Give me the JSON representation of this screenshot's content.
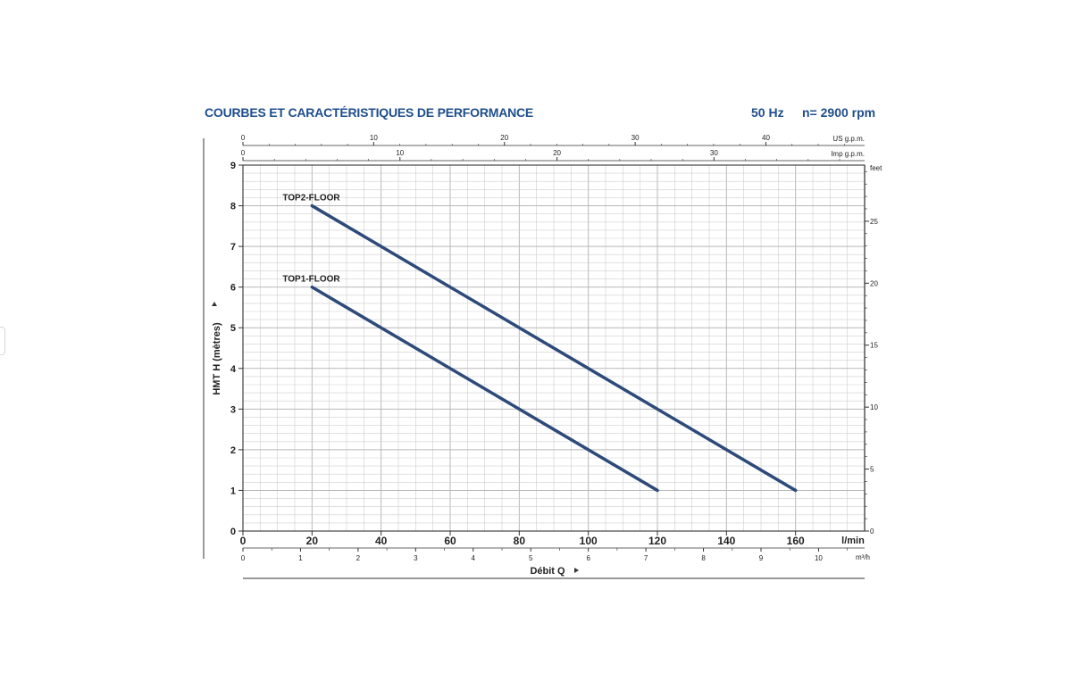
{
  "header": {
    "title": "COURBES ET CARACTÉRISTIQUES DE PERFORMANCE",
    "frequency": "50 Hz",
    "speed": "n= 2900 rpm"
  },
  "colors": {
    "curve": "#2d4a7a",
    "title": "#1f4e8c",
    "grid": "#cfcfcf",
    "text": "#222222"
  },
  "chart_data": {
    "type": "line",
    "xlabel": "Débit Q",
    "ylabel": "HMT H (mètres)",
    "xlim": [
      0,
      180
    ],
    "ylim": [
      0,
      9
    ],
    "x_unit": "l/min",
    "x_ticks": [
      0,
      20,
      40,
      60,
      80,
      100,
      120,
      140,
      160
    ],
    "y_ticks": [
      0,
      1,
      2,
      3,
      4,
      5,
      6,
      7,
      8,
      9
    ],
    "grid": true,
    "series": [
      {
        "name": "TOP2-FLOOR",
        "x": [
          20,
          160
        ],
        "y": [
          8,
          1
        ]
      },
      {
        "name": "TOP1-FLOOR",
        "x": [
          20,
          120
        ],
        "y": [
          6,
          1
        ]
      }
    ],
    "secondary_axes": {
      "us_gpm": {
        "unit": "US g.p.m.",
        "ticks": [
          0,
          10,
          20,
          30,
          40
        ]
      },
      "imp_gpm": {
        "unit": "Imp g.p.m.",
        "ticks": [
          0,
          10,
          20,
          30
        ]
      },
      "m3h": {
        "unit": "m³/h",
        "ticks": [
          0,
          1,
          2,
          3,
          4,
          5,
          6,
          7,
          8,
          9,
          10
        ]
      },
      "feet": {
        "unit": "feet",
        "ticks": [
          0,
          5,
          10,
          15,
          20,
          25
        ]
      }
    }
  }
}
